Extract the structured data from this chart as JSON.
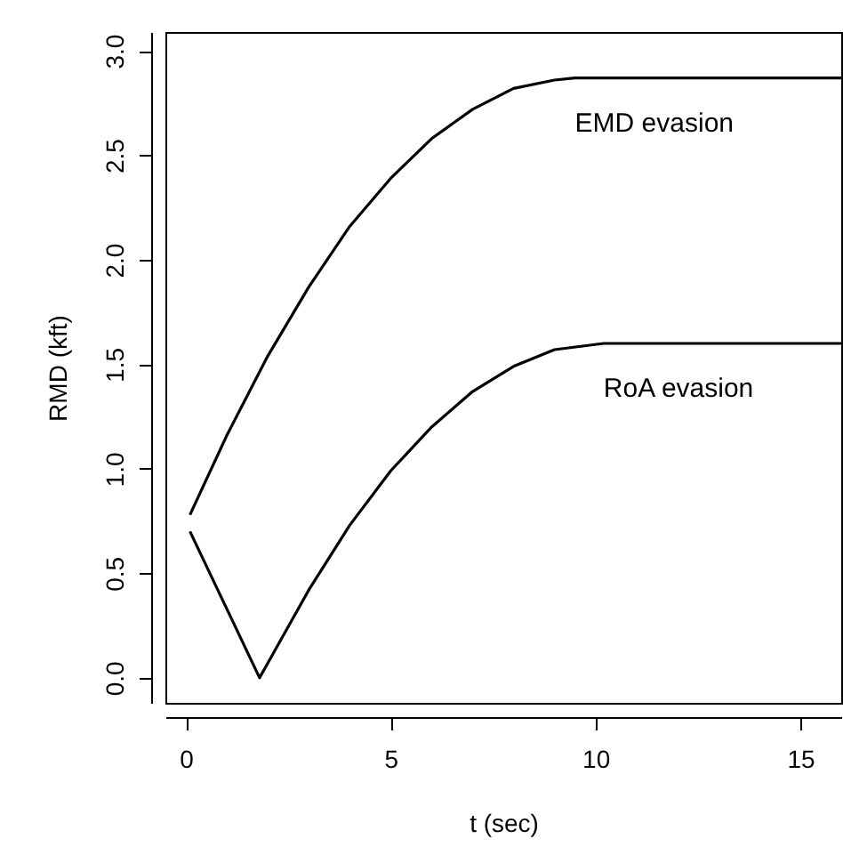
{
  "chart_data": {
    "type": "line",
    "xlabel": "t (sec)",
    "ylabel": "RMD (kft)",
    "xlim": [
      -0.5,
      16
    ],
    "xticks": [
      0,
      5,
      10,
      15
    ],
    "ylim": [
      -0.12,
      3.09
    ],
    "yticks": [
      {
        "value": 0,
        "label": "0.0"
      },
      {
        "value": 0.5,
        "label": "0.5"
      },
      {
        "value": 1,
        "label": "1.0"
      },
      {
        "value": 1.5,
        "label": "1.5"
      },
      {
        "value": 2,
        "label": "2.0"
      },
      {
        "value": 2.5,
        "label": "2.5"
      },
      {
        "value": 3,
        "label": "3.0"
      }
    ],
    "grid": false,
    "marker": "none",
    "line_style": "solid",
    "series": [
      {
        "name": "EMD evasion",
        "color": "#000000",
        "x": [
          0.1,
          1,
          2,
          3,
          4,
          5,
          6,
          7,
          8,
          9,
          9.5,
          16
        ],
        "values": [
          0.78,
          1.16,
          1.54,
          1.87,
          2.16,
          2.39,
          2.58,
          2.72,
          2.82,
          2.86,
          2.87,
          2.87
        ]
      },
      {
        "name": "RoA evasion",
        "color": "#000000",
        "x": [
          0.1,
          1.8,
          3,
          4,
          5,
          6,
          7,
          8,
          9,
          10.2,
          16
        ],
        "values": [
          0.7,
          0,
          0.42,
          0.73,
          0.99,
          1.2,
          1.37,
          1.49,
          1.57,
          1.6,
          1.6
        ]
      }
    ]
  }
}
